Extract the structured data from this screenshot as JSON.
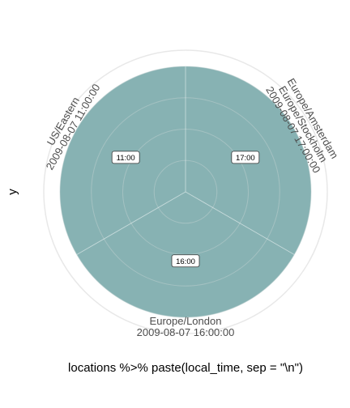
{
  "chart_data": {
    "type": "pie",
    "title": "",
    "xlabel": "locations %>% paste(local_time, sep = \"\\n\")",
    "ylabel": "y",
    "fill_color": "#87b2b3",
    "grid": true,
    "legend": "none",
    "slices": [
      {
        "category": [
          "Europe/Amsterdam",
          "Europe/Stockholm",
          "2009-08-07 17:00:00"
        ],
        "value": 1,
        "label": "17:00"
      },
      {
        "category": [
          "Europe/London",
          "2009-08-07 16:00:00"
        ],
        "value": 1,
        "label": "16:00"
      },
      {
        "category": [
          "US/Eastern",
          "2009-08-07 11:00:00"
        ],
        "value": 1,
        "label": "11:00"
      }
    ]
  }
}
